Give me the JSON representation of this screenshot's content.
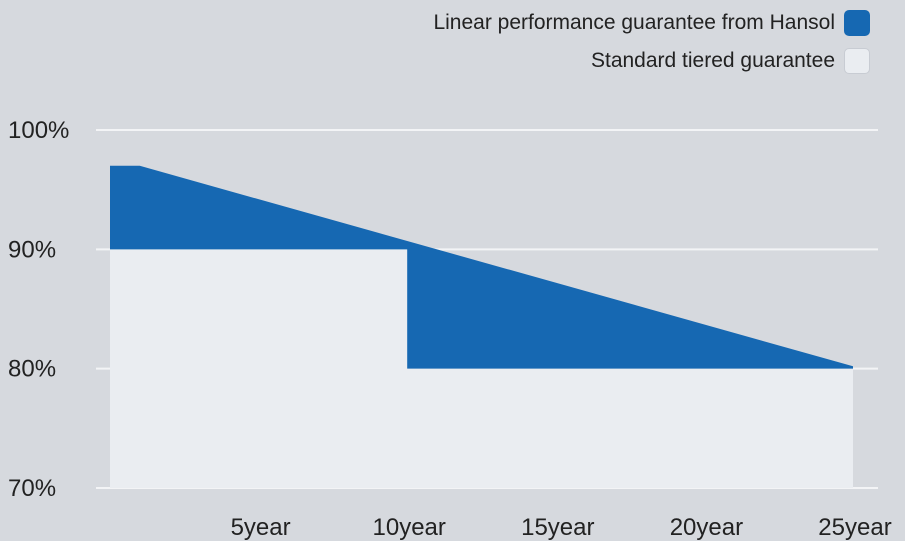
{
  "chart_data": {
    "type": "area",
    "title": "",
    "xlabel": "",
    "ylabel": "",
    "ylim": [
      70,
      100
    ],
    "xlim": [
      0,
      25
    ],
    "y_ticks": [
      "100%",
      "90%",
      "80%",
      "70%"
    ],
    "x_ticks": [
      "5year",
      "10year",
      "15year",
      "20year",
      "25year"
    ],
    "legend_position": "top-right",
    "grid": true,
    "series": [
      {
        "name": "Linear performance guarantee from Hansol",
        "color": "#1668b2",
        "x": [
          0,
          1,
          25
        ],
        "y": [
          97,
          97,
          80.2
        ]
      },
      {
        "name": "Standard tiered guarantee",
        "color": "#eaedf1",
        "x": [
          0,
          10,
          10,
          25
        ],
        "y": [
          90,
          90,
          80,
          80
        ]
      }
    ]
  }
}
